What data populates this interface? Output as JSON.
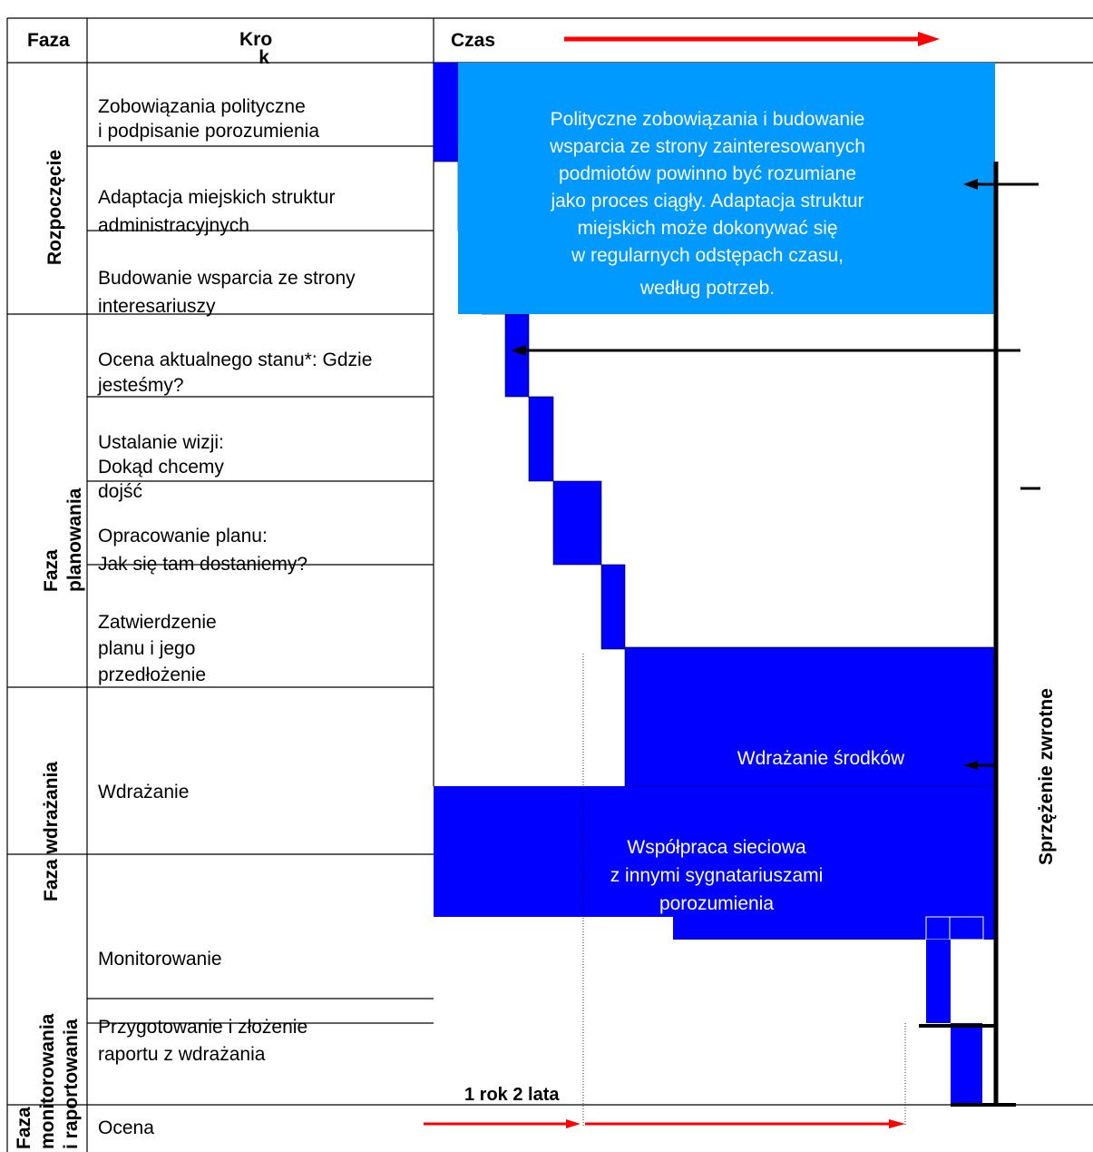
{
  "header": {
    "phase": "Faza",
    "step_line1": "Kro",
    "step_line2": "k",
    "time": "Czas"
  },
  "phases": {
    "start": "Rozpoczęcie",
    "planning": "Faza\nplanowania",
    "implementation": "Faza wdrażania",
    "monitoring": "Faza\nmonitorowania\ni raportowania"
  },
  "steps": [
    "Zobowiązania polityczne\ni podpisanie porozumienia",
    "Adaptacja miejskich struktur\nadministracyjnych",
    "Budowanie wsparcia ze strony\ninteresariuszy",
    "Ocena aktualnego stanu*: Gdzie\njesteśmy?",
    "Ustalanie wizji:\nDokąd chcemy\ndojść",
    "Opracowanie planu:\nJak się tam dostaniemy?",
    "Zatwierdzenie\nplanu i jego\nprzedłożenie",
    "Wdrażanie",
    "Monitorowanie",
    "Przygotowanie i złożenie\nraportu z wdrażania",
    "Ocena"
  ],
  "notes": {
    "continuous": "Polityczne zobowiązania i budowanie\nwsparcia ze strony zainteresowanych\npodmiotów powinno być rozumiane\njako proces ciągły. Adaptacja struktur\nmiejskich może dokonywać się",
    "continuous_cont": "w regularnych odstępach czasu,\nwedług potrzeb.",
    "measures": "Wdrażanie środków",
    "networking": "Współpraca sieciowa\nz innymi sygnatariuszami\nporozumienia"
  },
  "feedback": "Sprzężenie zwrotne",
  "scale_label": "1 rok 2 lata",
  "colors": {
    "light_blue": "#0099ff",
    "dark_blue": "#0000ff",
    "arrow_red": "#ff0000",
    "line": "#000000"
  }
}
